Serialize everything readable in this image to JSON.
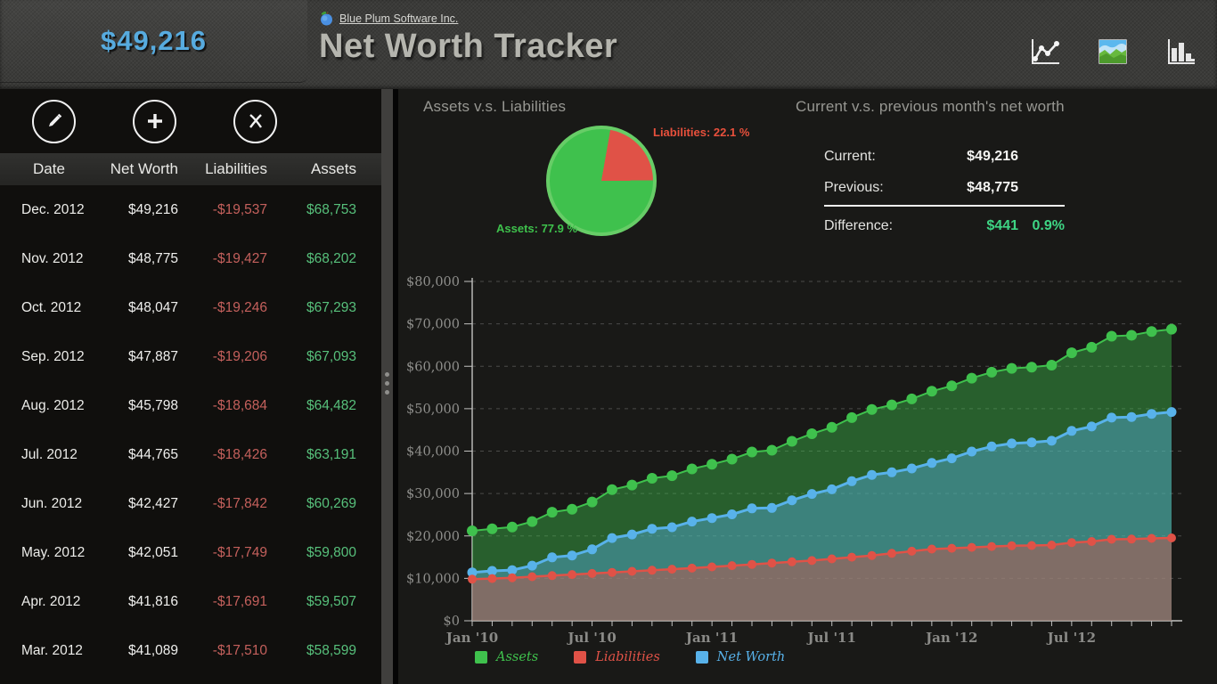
{
  "header": {
    "summary_value": "$49,216",
    "company_link": "Blue Plum Software Inc.",
    "app_title": "Net Worth Tracker",
    "view_icons": [
      "line-chart-view",
      "area-chart-view",
      "bar-chart-view"
    ]
  },
  "left_panel": {
    "actions": [
      "edit",
      "add",
      "delete"
    ],
    "table": {
      "headers": [
        "Date",
        "Net Worth",
        "Liabilities",
        "Assets"
      ],
      "rows": [
        {
          "date": "Dec. 2012",
          "net_worth": "$49,216",
          "liabilities": "-$19,537",
          "assets": "$68,753"
        },
        {
          "date": "Nov. 2012",
          "net_worth": "$48,775",
          "liabilities": "-$19,427",
          "assets": "$68,202"
        },
        {
          "date": "Oct. 2012",
          "net_worth": "$48,047",
          "liabilities": "-$19,246",
          "assets": "$67,293"
        },
        {
          "date": "Sep. 2012",
          "net_worth": "$47,887",
          "liabilities": "-$19,206",
          "assets": "$67,093"
        },
        {
          "date": "Aug. 2012",
          "net_worth": "$45,798",
          "liabilities": "-$18,684",
          "assets": "$64,482"
        },
        {
          "date": "Jul. 2012",
          "net_worth": "$44,765",
          "liabilities": "-$18,426",
          "assets": "$63,191"
        },
        {
          "date": "Jun. 2012",
          "net_worth": "$42,427",
          "liabilities": "-$17,842",
          "assets": "$60,269"
        },
        {
          "date": "May. 2012",
          "net_worth": "$42,051",
          "liabilities": "-$17,749",
          "assets": "$59,800"
        },
        {
          "date": "Apr. 2012",
          "net_worth": "$41,816",
          "liabilities": "-$17,691",
          "assets": "$59,507"
        },
        {
          "date": "Mar. 2012",
          "net_worth": "$41,089",
          "liabilities": "-$17,510",
          "assets": "$58,599"
        }
      ]
    }
  },
  "pie_section": {
    "title": "Assets v.s. Liabilities",
    "liabilities_label": "Liabilities: 22.1 %",
    "assets_label": "Assets: 77.9 %",
    "liabilities_pct": 22.1,
    "assets_pct": 77.9
  },
  "comparison": {
    "title": "Current v.s. previous month's net worth",
    "current_label": "Current:",
    "current_value": "$49,216",
    "previous_label": "Previous:",
    "previous_value": "$48,775",
    "difference_label": "Difference:",
    "difference_value": "$441",
    "difference_pct": "0.9%"
  },
  "colors": {
    "assets_green": "#3fc14d",
    "liabilities_red": "#e05247",
    "net_worth_blue": "#58b2ea",
    "accent_blue": "#57abdf",
    "difference_green": "#3ed584",
    "pie_ring_green": "#67cd67"
  },
  "chart_data": {
    "type": "area",
    "title": "",
    "xlabel": "",
    "ylabel": "",
    "ylim": [
      0,
      80000
    ],
    "grid": "dashed-horizontal",
    "legend_position": "bottom",
    "ytick_labels": [
      "$0",
      "$10,000",
      "$20,000",
      "$30,000",
      "$40,000",
      "$50,000",
      "$60,000",
      "$70,000",
      "$80,000"
    ],
    "xtick_shown": [
      "Jan '10",
      "Jul '10",
      "Jan '11",
      "Jul '11",
      "Jan '12",
      "Jul '12"
    ],
    "x_months": [
      "Jan '10",
      "Feb '10",
      "Mar '10",
      "Apr '10",
      "May '10",
      "Jun '10",
      "Jul '10",
      "Aug '10",
      "Sep '10",
      "Oct '10",
      "Nov '10",
      "Dec '10",
      "Jan '11",
      "Feb '11",
      "Mar '11",
      "Apr '11",
      "May '11",
      "Jun '11",
      "Jul '11",
      "Aug '11",
      "Sep '11",
      "Oct '11",
      "Nov '11",
      "Dec '11",
      "Jan '12",
      "Feb '12",
      "Mar '12",
      "Apr '12",
      "May '12",
      "Jun '12",
      "Jul '12",
      "Aug '12",
      "Sep '12",
      "Oct '12",
      "Nov '12",
      "Dec '12"
    ],
    "series": [
      {
        "name": "Assets",
        "color": "#3fc14d",
        "values": [
          21200,
          21700,
          22100,
          23400,
          25600,
          26300,
          28000,
          30900,
          32000,
          33600,
          34200,
          35800,
          36900,
          38100,
          39800,
          40200,
          42300,
          44100,
          45600,
          47900,
          49800,
          50900,
          52300,
          54100,
          55400,
          57200,
          58599,
          59507,
          59800,
          60269,
          63191,
          64482,
          67093,
          67293,
          68202,
          68753
        ]
      },
      {
        "name": "Liabilities",
        "color": "#e05247",
        "values": [
          9800,
          9950,
          10150,
          10400,
          10650,
          10900,
          11150,
          11400,
          11650,
          11900,
          12150,
          12400,
          12700,
          13000,
          13300,
          13600,
          13900,
          14200,
          14600,
          15000,
          15400,
          15900,
          16400,
          16900,
          17100,
          17300,
          17510,
          17691,
          17749,
          17842,
          18426,
          18684,
          19206,
          19246,
          19427,
          19537
        ]
      },
      {
        "name": "Net Worth",
        "color": "#58b2ea",
        "values": [
          11400,
          11750,
          11950,
          13000,
          14950,
          15400,
          16850,
          19500,
          20350,
          21700,
          22050,
          23400,
          24200,
          25100,
          26500,
          26600,
          28400,
          29900,
          31000,
          32900,
          34400,
          35000,
          35900,
          37200,
          38300,
          39900,
          41089,
          41816,
          42051,
          42427,
          44765,
          45798,
          47887,
          48047,
          48775,
          49216
        ]
      }
    ]
  }
}
